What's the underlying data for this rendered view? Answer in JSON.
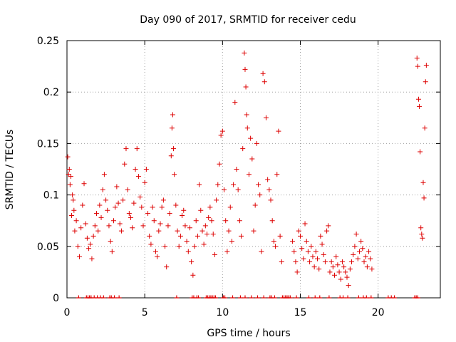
{
  "chart_data": {
    "type": "scatter",
    "title": "Day 090 of 2017, SRMTID for receiver cedu",
    "xlabel": "GPS time / hours",
    "ylabel": "SRMTID / TECUs",
    "xlim": [
      0,
      24
    ],
    "ylim": [
      0,
      0.25
    ],
    "x_ticks": [
      0,
      5,
      10,
      15,
      20
    ],
    "x_tick_labels": [
      "0",
      "5",
      "10",
      "15",
      "20"
    ],
    "y_ticks": [
      0,
      0.05,
      0.1,
      0.15,
      0.2,
      0.25
    ],
    "y_tick_labels": [
      "0",
      "0.05",
      "0.1",
      "0.15",
      "0.2",
      "0.25"
    ],
    "grid": true,
    "marker": "+",
    "colors": {
      "series": "#dd0000",
      "grid": "#a0a0a0",
      "axis": "#000000"
    },
    "series": [
      {
        "name": "SRMTID",
        "points": [
          [
            0.05,
            0.137
          ],
          [
            0.1,
            0.12
          ],
          [
            0.15,
            0.125
          ],
          [
            0.2,
            0.11
          ],
          [
            0.25,
            0.118
          ],
          [
            0.3,
            0.08
          ],
          [
            0.35,
            0.1
          ],
          [
            0.4,
            0.095
          ],
          [
            0.45,
            0.085
          ],
          [
            0.5,
            0.065
          ],
          [
            0.6,
            0.075
          ],
          [
            0.7,
            0.05
          ],
          [
            0.8,
            0.04
          ],
          [
            0.9,
            0.068
          ],
          [
            1.0,
            0.09
          ],
          [
            1.1,
            0.111
          ],
          [
            1.2,
            0.072
          ],
          [
            1.3,
            0.058
          ],
          [
            1.4,
            0.048
          ],
          [
            1.5,
            0.052
          ],
          [
            1.6,
            0.038
          ],
          [
            1.7,
            0.06
          ],
          [
            1.8,
            0.07
          ],
          [
            1.9,
            0.082
          ],
          [
            2.0,
            0.065
          ],
          [
            2.1,
            0.09
          ],
          [
            2.2,
            0.078
          ],
          [
            2.3,
            0.105
          ],
          [
            2.4,
            0.12
          ],
          [
            2.5,
            0.095
          ],
          [
            2.6,
            0.085
          ],
          [
            2.7,
            0.07
          ],
          [
            2.8,
            0.055
          ],
          [
            2.9,
            0.045
          ],
          [
            3.0,
            0.075
          ],
          [
            3.1,
            0.088
          ],
          [
            3.2,
            0.108
          ],
          [
            3.3,
            0.092
          ],
          [
            3.4,
            0.072
          ],
          [
            3.5,
            0.065
          ],
          [
            3.6,
            0.095
          ],
          [
            3.7,
            0.13
          ],
          [
            3.8,
            0.145
          ],
          [
            3.9,
            0.105
          ],
          [
            4.0,
            0.082
          ],
          [
            4.1,
            0.078
          ],
          [
            4.2,
            0.068
          ],
          [
            4.3,
            0.092
          ],
          [
            4.4,
            0.125
          ],
          [
            4.5,
            0.145
          ],
          [
            4.6,
            0.118
          ],
          [
            4.7,
            0.098
          ],
          [
            4.8,
            0.088
          ],
          [
            4.9,
            0.07
          ],
          [
            5.0,
            0.112
          ],
          [
            5.1,
            0.125
          ],
          [
            5.2,
            0.082
          ],
          [
            5.3,
            0.06
          ],
          [
            5.4,
            0.052
          ],
          [
            5.5,
            0.088
          ],
          [
            5.6,
            0.075
          ],
          [
            5.7,
            0.045
          ],
          [
            5.8,
            0.04
          ],
          [
            5.9,
            0.065
          ],
          [
            6.0,
            0.072
          ],
          [
            6.1,
            0.088
          ],
          [
            6.2,
            0.095
          ],
          [
            6.3,
            0.05
          ],
          [
            6.4,
            0.03
          ],
          [
            6.5,
            0.07
          ],
          [
            6.6,
            0.082
          ],
          [
            6.7,
            0.138
          ],
          [
            6.75,
            0.165
          ],
          [
            6.8,
            0.178
          ],
          [
            6.85,
            0.145
          ],
          [
            6.9,
            0.12
          ],
          [
            7.0,
            0.09
          ],
          [
            7.1,
            0.065
          ],
          [
            7.2,
            0.05
          ],
          [
            7.3,
            0.06
          ],
          [
            7.4,
            0.08
          ],
          [
            7.5,
            0.085
          ],
          [
            7.6,
            0.07
          ],
          [
            7.7,
            0.055
          ],
          [
            7.8,
            0.045
          ],
          [
            7.9,
            0.068
          ],
          [
            8.0,
            0.035
          ],
          [
            8.1,
            0.022
          ],
          [
            8.2,
            0.05
          ],
          [
            8.3,
            0.075
          ],
          [
            8.4,
            0.06
          ],
          [
            8.5,
            0.11
          ],
          [
            8.6,
            0.085
          ],
          [
            8.7,
            0.065
          ],
          [
            8.8,
            0.052
          ],
          [
            8.9,
            0.07
          ],
          [
            9.0,
            0.062
          ],
          [
            9.1,
            0.078
          ],
          [
            9.2,
            0.088
          ],
          [
            9.3,
            0.075
          ],
          [
            9.4,
            0.062
          ],
          [
            9.5,
            0.042
          ],
          [
            9.6,
            0.095
          ],
          [
            9.7,
            0.11
          ],
          [
            9.8,
            0.13
          ],
          [
            9.9,
            0.158
          ],
          [
            10.0,
            0.162
          ],
          [
            10.1,
            0.105
          ],
          [
            10.2,
            0.075
          ],
          [
            10.3,
            0.045
          ],
          [
            10.4,
            0.065
          ],
          [
            10.5,
            0.088
          ],
          [
            10.6,
            0.055
          ],
          [
            10.7,
            0.11
          ],
          [
            10.8,
            0.19
          ],
          [
            10.9,
            0.125
          ],
          [
            11.0,
            0.105
          ],
          [
            11.1,
            0.075
          ],
          [
            11.2,
            0.06
          ],
          [
            11.3,
            0.145
          ],
          [
            11.4,
            0.238
          ],
          [
            11.45,
            0.222
          ],
          [
            11.5,
            0.205
          ],
          [
            11.55,
            0.178
          ],
          [
            11.6,
            0.165
          ],
          [
            11.7,
            0.12
          ],
          [
            11.8,
            0.155
          ],
          [
            11.9,
            0.135
          ],
          [
            12.0,
            0.065
          ],
          [
            12.1,
            0.09
          ],
          [
            12.2,
            0.15
          ],
          [
            12.3,
            0.11
          ],
          [
            12.4,
            0.1
          ],
          [
            12.5,
            0.045
          ],
          [
            12.6,
            0.218
          ],
          [
            12.7,
            0.21
          ],
          [
            12.8,
            0.175
          ],
          [
            12.9,
            0.115
          ],
          [
            13.0,
            0.105
          ],
          [
            13.1,
            0.095
          ],
          [
            13.2,
            0.075
          ],
          [
            13.3,
            0.055
          ],
          [
            13.4,
            0.05
          ],
          [
            13.5,
            0.12
          ],
          [
            13.6,
            0.162
          ],
          [
            13.7,
            0.06
          ],
          [
            13.8,
            0.035
          ],
          [
            14.5,
            0.055
          ],
          [
            14.6,
            0.045
          ],
          [
            14.7,
            0.035
          ],
          [
            14.8,
            0.025
          ],
          [
            14.9,
            0.065
          ],
          [
            15.0,
            0.06
          ],
          [
            15.1,
            0.048
          ],
          [
            15.2,
            0.038
          ],
          [
            15.3,
            0.072
          ],
          [
            15.4,
            0.055
          ],
          [
            15.5,
            0.045
          ],
          [
            15.6,
            0.035
          ],
          [
            15.7,
            0.05
          ],
          [
            15.8,
            0.04
          ],
          [
            15.9,
            0.03
          ],
          [
            16.0,
            0.045
          ],
          [
            16.1,
            0.038
          ],
          [
            16.2,
            0.028
          ],
          [
            16.3,
            0.06
          ],
          [
            16.4,
            0.052
          ],
          [
            16.5,
            0.042
          ],
          [
            16.6,
            0.035
          ],
          [
            16.7,
            0.065
          ],
          [
            16.8,
            0.07
          ],
          [
            16.9,
            0.025
          ],
          [
            17.0,
            0.035
          ],
          [
            17.1,
            0.03
          ],
          [
            17.2,
            0.022
          ],
          [
            17.3,
            0.04
          ],
          [
            17.4,
            0.032
          ],
          [
            17.5,
            0.025
          ],
          [
            17.6,
            0.018
          ],
          [
            17.7,
            0.035
          ],
          [
            17.8,
            0.03
          ],
          [
            17.9,
            0.025
          ],
          [
            18.0,
            0.02
          ],
          [
            18.1,
            0.012
          ],
          [
            18.2,
            0.028
          ],
          [
            18.3,
            0.035
          ],
          [
            18.4,
            0.042
          ],
          [
            18.5,
            0.05
          ],
          [
            18.6,
            0.062
          ],
          [
            18.7,
            0.038
          ],
          [
            18.8,
            0.045
          ],
          [
            18.9,
            0.055
          ],
          [
            19.0,
            0.048
          ],
          [
            19.1,
            0.035
          ],
          [
            19.2,
            0.04
          ],
          [
            19.3,
            0.03
          ],
          [
            19.4,
            0.045
          ],
          [
            19.5,
            0.038
          ],
          [
            19.6,
            0.028
          ],
          [
            22.5,
            0.233
          ],
          [
            22.55,
            0.225
          ],
          [
            22.6,
            0.193
          ],
          [
            22.65,
            0.186
          ],
          [
            22.7,
            0.142
          ],
          [
            22.75,
            0.068
          ],
          [
            22.8,
            0.062
          ],
          [
            22.85,
            0.058
          ],
          [
            22.9,
            0.112
          ],
          [
            22.95,
            0.097
          ],
          [
            23.0,
            0.165
          ],
          [
            23.05,
            0.21
          ],
          [
            23.1,
            0.226
          ]
        ]
      }
    ],
    "zero_markers_x": [
      0.75,
      1.25,
      1.35,
      1.45,
      1.55,
      1.75,
      1.95,
      2.15,
      2.35,
      2.75,
      2.85,
      3.05,
      3.35,
      7.05,
      8.05,
      8.15,
      8.35,
      8.45,
      8.95,
      9.05,
      9.15,
      9.25,
      9.35,
      9.45,
      9.55,
      10.05,
      10.15,
      10.65,
      11.15,
      11.45,
      11.85,
      12.25,
      12.65,
      13.05,
      13.15,
      13.35,
      13.85,
      13.95,
      14.05,
      14.15,
      14.25,
      14.35,
      14.75,
      15.55,
      15.95,
      16.25,
      16.85,
      17.55,
      17.75,
      18.05,
      18.75,
      19.05,
      19.25,
      19.55,
      20.65,
      20.85,
      21.05,
      22.35,
      22.45,
      22.55
    ]
  }
}
